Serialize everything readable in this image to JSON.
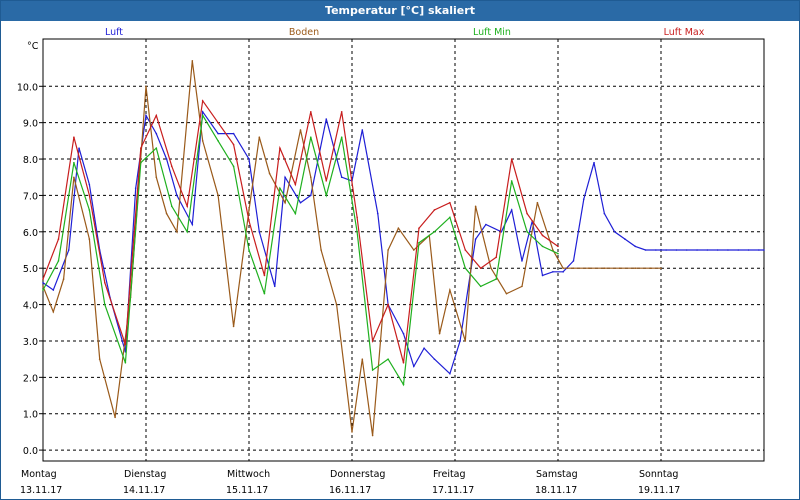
{
  "window": {
    "title": "Temperatur [°C] skaliert"
  },
  "chart_data": {
    "type": "line",
    "title": "Temperatur [°C] skaliert",
    "ylabel": "°C",
    "xlabel": "",
    "ylim": [
      -0.3,
      11.3
    ],
    "xlim": [
      0,
      7
    ],
    "grid": true,
    "y_ticks": [
      "0.0",
      "1.0",
      "2.0",
      "3.0",
      "4.0",
      "5.0",
      "6.0",
      "7.0",
      "8.0",
      "9.0",
      "10.0"
    ],
    "day_labels": [
      {
        "day": "Montag",
        "date": "13.11.17"
      },
      {
        "day": "Dienstag",
        "date": "14.11.17"
      },
      {
        "day": "Mittwoch",
        "date": "15.11.17"
      },
      {
        "day": "Donnerstag",
        "date": "16.11.17"
      },
      {
        "day": "Freitag",
        "date": "17.11.17"
      },
      {
        "day": "Samstag",
        "date": "18.11.17"
      },
      {
        "day": "Sonntag",
        "date": "19.11.17"
      }
    ],
    "series": [
      {
        "name": "Luft",
        "color": "#1f1fd6",
        "x": [
          0,
          0.1,
          0.25,
          0.35,
          0.45,
          0.55,
          0.65,
          0.8,
          0.9,
          1.0,
          1.1,
          1.2,
          1.3,
          1.45,
          1.55,
          1.7,
          1.85,
          2.0,
          2.1,
          2.25,
          2.35,
          2.5,
          2.6,
          2.75,
          2.9,
          3.0,
          3.1,
          3.25,
          3.35,
          3.5,
          3.6,
          3.7,
          3.8,
          3.95,
          4.05,
          4.2,
          4.3,
          4.45,
          4.55,
          4.65,
          4.75,
          4.85,
          4.95,
          5.05,
          5.15,
          5.25,
          5.35,
          5.45,
          5.55,
          5.65,
          5.75,
          5.85,
          5.95,
          6.05,
          6.15,
          6.25,
          6.35,
          6.45,
          6.55,
          6.65,
          6.75,
          6.85,
          6.95,
          7.0
        ],
        "y": [
          4.6,
          4.4,
          5.5,
          8.3,
          7.3,
          5.5,
          4.2,
          2.7,
          7.2,
          9.2,
          8.7,
          8.0,
          7.0,
          6.2,
          9.3,
          8.7,
          8.7,
          8.0,
          6.0,
          4.5,
          7.5,
          6.8,
          7.0,
          9.1,
          7.5,
          7.4,
          8.8,
          6.5,
          4.0,
          3.2,
          2.3,
          2.8,
          2.5,
          2.1,
          3.0,
          5.8,
          6.2,
          6.0,
          6.6,
          5.2,
          6.3,
          4.8,
          4.9,
          4.9,
          5.2,
          6.9,
          7.9,
          6.5,
          6.0,
          5.8,
          5.6,
          5.5,
          5.5,
          5.5,
          5.5,
          5.5,
          5.5,
          5.5,
          5.5,
          5.5,
          5.5,
          5.5,
          5.5,
          5.5
        ]
      },
      {
        "name": "Boden",
        "color": "#9a5a1a",
        "x": [
          0,
          0.1,
          0.2,
          0.3,
          0.45,
          0.55,
          0.7,
          0.85,
          1.0,
          1.1,
          1.2,
          1.3,
          1.45,
          1.55,
          1.7,
          1.85,
          2.0,
          2.1,
          2.2,
          2.35,
          2.5,
          2.6,
          2.7,
          2.85,
          3.0,
          3.1,
          3.2,
          3.35,
          3.45,
          3.6,
          3.75,
          3.85,
          3.95,
          4.1,
          4.2,
          4.35,
          4.5,
          4.65,
          4.8,
          4.95,
          5.05,
          5.15,
          5.3,
          5.45,
          5.6,
          5.75,
          5.9,
          6.0
        ],
        "y": [
          4.5,
          3.8,
          4.7,
          7.5,
          5.8,
          2.5,
          0.9,
          4.2,
          10.0,
          7.5,
          6.5,
          6.0,
          10.7,
          8.5,
          7.0,
          3.4,
          6.6,
          8.6,
          7.6,
          6.8,
          8.8,
          7.5,
          5.5,
          4.0,
          0.5,
          2.5,
          0.4,
          5.5,
          6.1,
          5.5,
          5.9,
          3.2,
          4.4,
          3.0,
          6.7,
          5.0,
          4.3,
          4.5,
          6.8,
          5.5,
          5.0,
          5.0,
          5.0,
          5.0,
          5.0,
          5.0,
          5.0,
          5.0
        ]
      },
      {
        "name": "Luft Min",
        "color": "#1fb01f",
        "x": [
          0,
          0.15,
          0.3,
          0.45,
          0.6,
          0.8,
          0.95,
          1.1,
          1.25,
          1.4,
          1.55,
          1.7,
          1.85,
          2.0,
          2.15,
          2.3,
          2.45,
          2.6,
          2.75,
          2.9,
          3.05,
          3.2,
          3.35,
          3.5,
          3.65,
          3.8,
          3.95,
          4.1,
          4.25,
          4.4,
          4.55,
          4.7,
          4.85,
          5.0
        ],
        "y": [
          4.4,
          5.2,
          7.9,
          6.6,
          4.0,
          2.4,
          7.9,
          8.3,
          6.7,
          6.0,
          9.2,
          8.5,
          7.8,
          5.5,
          4.3,
          7.2,
          6.5,
          8.6,
          7.0,
          8.6,
          6.0,
          2.2,
          2.5,
          1.8,
          5.7,
          6.0,
          6.4,
          5.0,
          4.5,
          4.7,
          7.4,
          6.0,
          5.6,
          5.4
        ]
      },
      {
        "name": "Luft Max",
        "color": "#c81e1e",
        "x": [
          0,
          0.15,
          0.3,
          0.45,
          0.6,
          0.8,
          0.95,
          1.1,
          1.25,
          1.4,
          1.55,
          1.7,
          1.85,
          2.0,
          2.15,
          2.3,
          2.45,
          2.6,
          2.75,
          2.9,
          3.05,
          3.2,
          3.35,
          3.5,
          3.65,
          3.8,
          3.95,
          4.1,
          4.25,
          4.4,
          4.55,
          4.7,
          4.85,
          5.0
        ],
        "y": [
          4.7,
          5.8,
          8.6,
          7.0,
          4.6,
          2.9,
          8.3,
          9.2,
          7.8,
          6.7,
          9.6,
          9.0,
          8.4,
          6.3,
          4.8,
          8.3,
          7.3,
          9.3,
          7.4,
          9.3,
          6.4,
          3.0,
          4.0,
          2.4,
          6.1,
          6.6,
          6.8,
          5.5,
          5.0,
          5.3,
          8.0,
          6.5,
          5.9,
          5.6
        ]
      }
    ]
  }
}
